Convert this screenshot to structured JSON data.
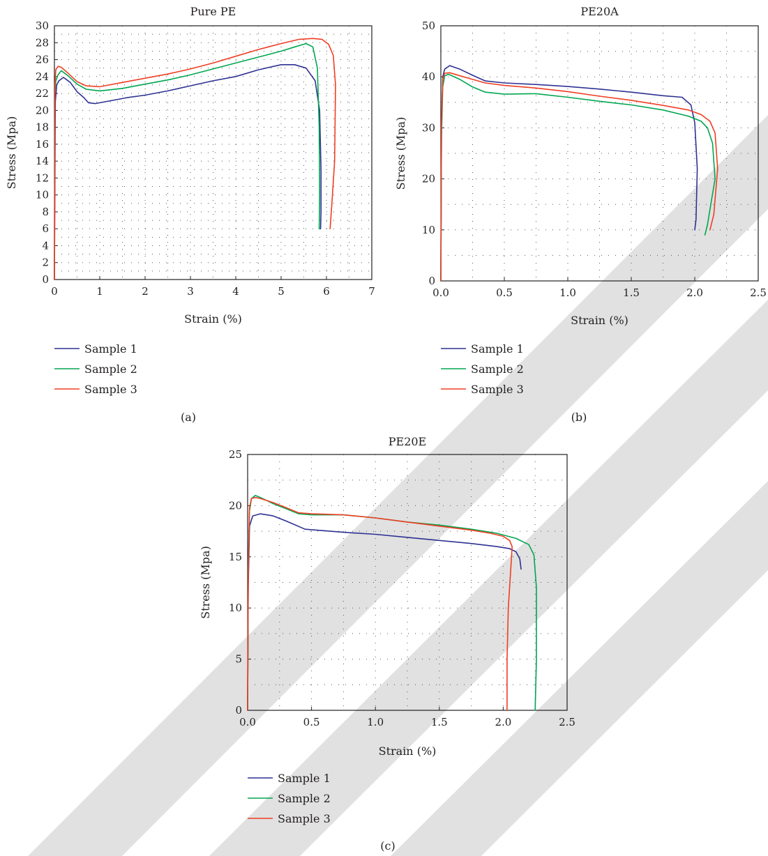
{
  "chart_data": [
    {
      "type": "line",
      "title": "Pure PE",
      "caption": "(a)",
      "xlabel": "Strain (%)",
      "ylabel": "Stress (Mpa)",
      "xlim": [
        0,
        7
      ],
      "ylim": [
        0,
        30
      ],
      "xticks": [
        "0",
        "1",
        "2",
        "3",
        "4",
        "5",
        "6",
        "7"
      ],
      "yticks": [
        "0",
        "2",
        "4",
        "6",
        "8",
        "10",
        "12",
        "14",
        "16",
        "18",
        "20",
        "22",
        "24",
        "26",
        "28",
        "30"
      ],
      "grid": "dotted",
      "legend_position": "below",
      "series": [
        {
          "name": "Sample 1",
          "color": "#2e3192",
          "x": [
            0,
            0.02,
            0.05,
            0.1,
            0.2,
            0.35,
            0.5,
            0.65,
            0.75,
            0.9,
            1.2,
            1.6,
            2,
            2.5,
            3,
            3.5,
            4,
            4.5,
            5,
            5.3,
            5.55,
            5.75,
            5.85,
            5.88,
            5.88,
            5.87
          ],
          "y": [
            0,
            21,
            23,
            23.5,
            23.9,
            23.3,
            22.2,
            21.5,
            20.9,
            20.8,
            21.1,
            21.5,
            21.8,
            22.3,
            22.9,
            23.5,
            24,
            24.8,
            25.4,
            25.4,
            25,
            23.5,
            20,
            13,
            8,
            6
          ]
        },
        {
          "name": "Sample 2",
          "color": "#00a651",
          "x": [
            0,
            0.01,
            0.03,
            0.08,
            0.15,
            0.3,
            0.5,
            0.7,
            1,
            1.5,
            2,
            2.5,
            3,
            3.5,
            4,
            4.5,
            5,
            5.3,
            5.55,
            5.7,
            5.8,
            5.84,
            5.85,
            5.84
          ],
          "y": [
            0,
            22,
            23.5,
            24.2,
            24.7,
            24.1,
            23.1,
            22.5,
            22.3,
            22.6,
            23.1,
            23.6,
            24.2,
            24.9,
            25.6,
            26.3,
            27,
            27.5,
            27.9,
            27.5,
            25,
            18,
            10,
            6
          ]
        },
        {
          "name": "Sample 3",
          "color": "#ef3e23",
          "x": [
            0,
            0.01,
            0.03,
            0.08,
            0.15,
            0.3,
            0.5,
            0.7,
            1,
            1.5,
            2,
            2.5,
            3,
            3.5,
            4,
            4.5,
            5,
            5.4,
            5.7,
            5.9,
            6.05,
            6.15,
            6.2,
            6.18,
            6.12,
            6.08
          ],
          "y": [
            0,
            23,
            24.8,
            25.2,
            25.1,
            24.4,
            23.4,
            22.9,
            22.8,
            23.3,
            23.8,
            24.3,
            24.9,
            25.6,
            26.4,
            27.2,
            27.9,
            28.4,
            28.5,
            28.4,
            27.8,
            26.5,
            23,
            14,
            9,
            6
          ]
        }
      ]
    },
    {
      "type": "line",
      "title": "PE20A",
      "caption": "(b)",
      "xlabel": "Strain (%)",
      "ylabel": "Stress (Mpa)",
      "xlim": [
        0,
        2.5
      ],
      "ylim": [
        0,
        50
      ],
      "xticks": [
        "0.0",
        "0.5",
        "1.0",
        "1.5",
        "2.0",
        "2.5"
      ],
      "yticks": [
        "0",
        "10",
        "20",
        "30",
        "40",
        "50"
      ],
      "grid": "dotted",
      "legend_position": "below",
      "series": [
        {
          "name": "Sample 1",
          "color": "#2e3192",
          "x": [
            0,
            0.005,
            0.015,
            0.03,
            0.07,
            0.15,
            0.25,
            0.35,
            0.5,
            0.75,
            1,
            1.25,
            1.5,
            1.75,
            1.9,
            1.97,
            2.0,
            2.02,
            2.01,
            2.0
          ],
          "y": [
            0,
            30,
            40,
            41.5,
            42.2,
            41.5,
            40.3,
            39.2,
            38.8,
            38.5,
            38.1,
            37.6,
            37,
            36.3,
            36,
            34.5,
            31,
            22,
            12,
            10
          ]
        },
        {
          "name": "Sample 2",
          "color": "#00a651",
          "x": [
            0,
            0.005,
            0.015,
            0.03,
            0.06,
            0.15,
            0.25,
            0.35,
            0.5,
            0.75,
            1,
            1.25,
            1.5,
            1.75,
            1.95,
            2.05,
            2.1,
            2.14,
            2.16,
            2.12,
            2.1,
            2.08
          ],
          "y": [
            0,
            28,
            38,
            40.2,
            40.5,
            39.5,
            38,
            37,
            36.6,
            36.7,
            36,
            35.2,
            34.5,
            33.5,
            32.3,
            31.3,
            30,
            27,
            20,
            14,
            11,
            9
          ]
        },
        {
          "name": "Sample 3",
          "color": "#ef3e23",
          "x": [
            0,
            0.005,
            0.015,
            0.03,
            0.07,
            0.15,
            0.25,
            0.35,
            0.5,
            0.75,
            1,
            1.25,
            1.5,
            1.75,
            1.95,
            2.05,
            2.12,
            2.16,
            2.18,
            2.15,
            2.12
          ],
          "y": [
            0,
            30,
            39.5,
            40.7,
            40.8,
            40.2,
            39.5,
            38.8,
            38.3,
            37.8,
            37.1,
            36.2,
            35.4,
            34.4,
            33.5,
            32.6,
            31.3,
            29,
            22,
            13,
            10
          ]
        }
      ]
    },
    {
      "type": "line",
      "title": "PE20E",
      "caption": "(c)",
      "xlabel": "Strain (%)",
      "ylabel": "Stress (Mpa)",
      "xlim": [
        0,
        2.5
      ],
      "ylim": [
        0,
        25
      ],
      "xticks": [
        "0.0",
        "0.5",
        "1.0",
        "1.5",
        "2.0",
        "2.5"
      ],
      "yticks": [
        "0",
        "5",
        "10",
        "15",
        "20",
        "25"
      ],
      "grid": "dotted",
      "legend_position": "below",
      "series": [
        {
          "name": "Sample 1",
          "color": "#2e3192",
          "x": [
            0,
            0.005,
            0.015,
            0.04,
            0.1,
            0.2,
            0.3,
            0.45,
            0.75,
            1,
            1.25,
            1.5,
            1.75,
            1.95,
            2.05,
            2.1,
            2.13,
            2.14
          ],
          "y": [
            0,
            12,
            18,
            19,
            19.2,
            19,
            18.5,
            17.7,
            17.4,
            17.2,
            16.9,
            16.6,
            16.3,
            16,
            15.8,
            15.5,
            14.8,
            13.8
          ]
        },
        {
          "name": "Sample 2",
          "color": "#00a651",
          "x": [
            0,
            0.005,
            0.015,
            0.03,
            0.06,
            0.1,
            0.2,
            0.3,
            0.4,
            0.5,
            0.75,
            1,
            1.25,
            1.5,
            1.75,
            1.95,
            2.1,
            2.2,
            2.24,
            2.26,
            2.26,
            2.25
          ],
          "y": [
            0,
            13,
            19.5,
            20.7,
            21,
            20.8,
            20.2,
            19.7,
            19.2,
            19.1,
            19.1,
            18.8,
            18.4,
            18.1,
            17.7,
            17.3,
            16.8,
            16.2,
            15.2,
            12,
            5,
            0
          ]
        },
        {
          "name": "Sample 3",
          "color": "#ef3e23",
          "x": [
            0,
            0.005,
            0.015,
            0.03,
            0.06,
            0.1,
            0.2,
            0.3,
            0.4,
            0.5,
            0.75,
            1,
            1.25,
            1.5,
            1.75,
            1.9,
            2.0,
            2.05,
            2.07,
            2.06,
            2.04,
            2.03,
            2.03
          ],
          "y": [
            0,
            14,
            19.8,
            20.7,
            20.8,
            20.7,
            20.3,
            19.8,
            19.3,
            19.2,
            19.1,
            18.8,
            18.4,
            18,
            17.6,
            17.3,
            17,
            16.6,
            16,
            14,
            10,
            5,
            0
          ]
        }
      ]
    }
  ]
}
